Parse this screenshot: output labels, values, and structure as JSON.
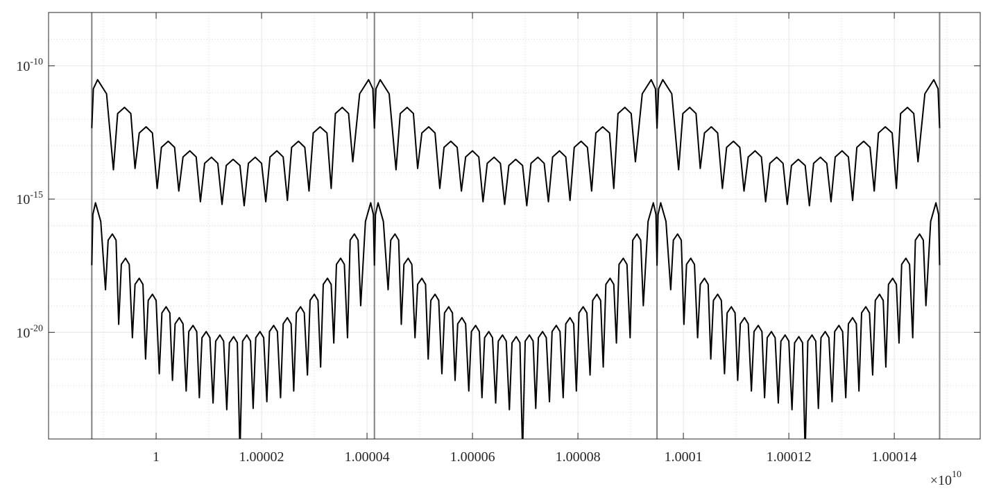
{
  "chart_data": {
    "type": "line",
    "yscale": "log",
    "grid": true,
    "minor_grid": true,
    "xlim": [
      0.9999796,
      1.0001563
    ],
    "ylim": [
      1e-24,
      1e-08
    ],
    "xticks": [
      1,
      1.00002,
      1.00004,
      1.00006,
      1.00008,
      1.0001,
      1.00012,
      1.00014
    ],
    "yticks": [
      {
        "value": 1e-10,
        "label": "10",
        "exponent": "-10"
      },
      {
        "value": 1e-15,
        "label": "10",
        "exponent": "-15"
      },
      {
        "value": 1e-20,
        "label": "10",
        "exponent": "-20"
      }
    ],
    "x_multiplier": "×10",
    "x_multiplier_exponent": "10",
    "vlines": {
      "color": "#808080",
      "x": [
        0.9999878,
        1.0000414,
        1.000095,
        1.0001486
      ]
    },
    "series": [
      {
        "color": "#000000",
        "x": [
          0.9999878,
          0.9999881,
          0.9999889,
          0.9999906,
          0.9999919,
          0.9999927,
          0.999994,
          0.9999952,
          0.999996,
          0.9999968,
          0.9999981,
          0.9999993,
          1.0000002,
          1.000001,
          1.0000023,
          1.0000035,
          1.0000043,
          1.0000051,
          1.0000064,
          1.0000076,
          1.0000084,
          1.0000092,
          1.0000105,
          1.0000117,
          1.0000125,
          1.0000133,
          1.0000146,
          1.0000159,
          1.0000167,
          1.0000175,
          1.0000188,
          1.00002,
          1.0000208,
          1.0000216,
          1.0000229,
          1.0000241,
          1.0000249,
          1.0000257,
          1.000027,
          1.0000282,
          1.000029,
          1.0000298,
          1.0000311,
          1.0000324,
          1.0000332,
          1.000034,
          1.0000353,
          1.0000365,
          1.0000373,
          1.0000386,
          1.0000403,
          1.0000411,
          1.0000414,
          1.0000417,
          1.0000425,
          1.0000442,
          1.0000455,
          1.0000463,
          1.0000476,
          1.0000488,
          1.0000496,
          1.0000504,
          1.0000517,
          1.0000529,
          1.0000538,
          1.0000546,
          1.0000559,
          1.0000571,
          1.0000579,
          1.0000587,
          1.00006,
          1.0000612,
          1.000062,
          1.0000628,
          1.0000641,
          1.0000653,
          1.0000661,
          1.0000669,
          1.0000682,
          1.0000695,
          1.0000703,
          1.0000711,
          1.0000724,
          1.0000736,
          1.0000744,
          1.0000752,
          1.0000765,
          1.0000777,
          1.0000785,
          1.0000793,
          1.0000806,
          1.0000818,
          1.0000826,
          1.0000834,
          1.0000847,
          1.000086,
          1.0000868,
          1.0000876,
          1.0000889,
          1.0000901,
          1.0000909,
          1.0000922,
          1.0000939,
          1.0000947,
          1.000095,
          1.0000953,
          1.0000961,
          1.0000978,
          1.0000991,
          1.0000999,
          1.0001012,
          1.0001024,
          1.0001032,
          1.000104,
          1.0001053,
          1.0001065,
          1.0001074,
          1.0001082,
          1.0001095,
          1.0001107,
          1.0001115,
          1.0001123,
          1.0001136,
          1.0001148,
          1.0001156,
          1.0001164,
          1.0001177,
          1.0001189,
          1.0001197,
          1.0001205,
          1.0001218,
          1.0001231,
          1.0001239,
          1.0001247,
          1.000126,
          1.0001272,
          1.000128,
          1.0001288,
          1.0001301,
          1.0001313,
          1.0001321,
          1.0001329,
          1.0001342,
          1.0001354,
          1.0001362,
          1.000137,
          1.0001383,
          1.0001396,
          1.0001404,
          1.0001412,
          1.0001425,
          1.0001437,
          1.0001445,
          1.0001458,
          1.0001475,
          1.0001483,
          1.0001486
        ],
        "values": [
          4.6e-13,
          1.38e-11,
          3e-11,
          8.9e-12,
          1.26e-14,
          1.62e-12,
          2.75e-12,
          1.62e-12,
          1.41e-14,
          3.02e-13,
          5.13e-13,
          3.02e-13,
          2.51e-15,
          8.7e-14,
          1.48e-13,
          8.7e-14,
          2e-15,
          3.8e-14,
          6.46e-14,
          3.8e-14,
          7.94e-16,
          2.19e-14,
          3.72e-14,
          2.19e-14,
          6.31e-16,
          1.82e-14,
          3.09e-14,
          1.82e-14,
          5.62e-16,
          2.19e-14,
          3.72e-14,
          2.19e-14,
          7.94e-16,
          3.8e-14,
          6.46e-14,
          3.8e-14,
          8.91e-16,
          8.7e-14,
          1.48e-13,
          8.7e-14,
          2e-15,
          3.02e-13,
          5.13e-13,
          3.02e-13,
          2.51e-15,
          1.62e-12,
          2.75e-12,
          1.62e-12,
          2.51e-14,
          8.9e-12,
          3e-11,
          1.38e-11,
          4.6e-13,
          1.38e-11,
          3e-11,
          8.9e-12,
          1.26e-14,
          1.62e-12,
          2.75e-12,
          1.62e-12,
          1.41e-14,
          3.02e-13,
          5.13e-13,
          3.02e-13,
          2.51e-15,
          8.7e-14,
          1.48e-13,
          8.7e-14,
          2e-15,
          3.8e-14,
          6.46e-14,
          3.8e-14,
          7.94e-16,
          2.19e-14,
          3.72e-14,
          2.19e-14,
          6.31e-16,
          1.82e-14,
          3.09e-14,
          1.82e-14,
          5.62e-16,
          2.19e-14,
          3.72e-14,
          2.19e-14,
          7.94e-16,
          3.8e-14,
          6.46e-14,
          3.8e-14,
          8.91e-16,
          8.7e-14,
          1.48e-13,
          8.7e-14,
          2e-15,
          3.02e-13,
          5.13e-13,
          3.02e-13,
          2.51e-15,
          1.62e-12,
          2.75e-12,
          1.62e-12,
          2.51e-14,
          8.9e-12,
          3e-11,
          1.38e-11,
          4.6e-13,
          1.38e-11,
          3e-11,
          8.9e-12,
          1.26e-14,
          1.62e-12,
          2.75e-12,
          1.62e-12,
          1.41e-14,
          3.02e-13,
          5.13e-13,
          3.02e-13,
          2.51e-15,
          8.7e-14,
          1.48e-13,
          8.7e-14,
          2e-15,
          3.8e-14,
          6.46e-14,
          3.8e-14,
          7.94e-16,
          2.19e-14,
          3.72e-14,
          2.19e-14,
          6.31e-16,
          1.82e-14,
          3.09e-14,
          1.82e-14,
          5.62e-16,
          2.19e-14,
          3.72e-14,
          2.19e-14,
          7.94e-16,
          3.8e-14,
          6.46e-14,
          3.8e-14,
          8.91e-16,
          8.7e-14,
          1.48e-13,
          8.7e-14,
          2e-15,
          3.02e-13,
          5.13e-13,
          3.02e-13,
          2.51e-15,
          1.62e-12,
          2.75e-12,
          1.62e-12,
          2.51e-14,
          8.9e-12,
          3e-11,
          1.38e-11,
          4.6e-13
        ]
      },
      {
        "color": "#000000",
        "x": [
          0.9999878,
          0.999988,
          0.9999885,
          0.9999895,
          0.9999904,
          0.9999909,
          0.9999917,
          0.9999924,
          0.9999929,
          0.9999934,
          0.9999942,
          0.9999949,
          0.9999955,
          0.999996,
          0.9999968,
          0.9999975,
          0.999998,
          0.9999985,
          0.9999993,
          1.0,
          1.0000006,
          1.0000011,
          1.0000019,
          1.0000026,
          1.0000031,
          1.0000036,
          1.0000044,
          1.0000051,
          1.0000057,
          1.0000062,
          1.000007,
          1.0000077,
          1.0000082,
          1.0000087,
          1.0000095,
          1.0000102,
          1.0000108,
          1.0000113,
          1.0000121,
          1.0000128,
          1.0000134,
          1.0000139,
          1.0000147,
          1.0000154,
          1.0000159,
          1.0000164,
          1.0000172,
          1.0000179,
          1.0000184,
          1.0000189,
          1.0000197,
          1.0000204,
          1.000021,
          1.0000215,
          1.0000223,
          1.000023,
          1.0000236,
          1.0000241,
          1.0000249,
          1.0000256,
          1.0000261,
          1.0000266,
          1.0000274,
          1.0000281,
          1.0000287,
          1.0000292,
          1.00003,
          1.0000307,
          1.0000312,
          1.0000317,
          1.0000325,
          1.0000332,
          1.0000337,
          1.0000342,
          1.000035,
          1.0000357,
          1.0000363,
          1.0000368,
          1.0000376,
          1.0000383,
          1.0000388,
          1.0000397,
          1.0000407,
          1.0000412,
          1.0000414,
          1.0000416,
          1.0000421,
          1.0000431,
          1.000044,
          1.0000445,
          1.0000453,
          1.000046,
          1.0000465,
          1.000047,
          1.0000478,
          1.0000485,
          1.0000491,
          1.0000496,
          1.0000504,
          1.0000511,
          1.0000516,
          1.0000521,
          1.0000529,
          1.0000536,
          1.0000542,
          1.0000547,
          1.0000555,
          1.0000562,
          1.0000567,
          1.0000572,
          1.000058,
          1.0000587,
          1.0000593,
          1.0000598,
          1.0000606,
          1.0000613,
          1.0000618,
          1.0000623,
          1.0000631,
          1.0000638,
          1.0000644,
          1.0000649,
          1.0000657,
          1.0000664,
          1.000067,
          1.0000675,
          1.0000683,
          1.000069,
          1.0000695,
          1.00007,
          1.0000708,
          1.0000715,
          1.000072,
          1.0000725,
          1.0000733,
          1.000074,
          1.0000746,
          1.0000751,
          1.0000759,
          1.0000766,
          1.0000772,
          1.0000777,
          1.0000785,
          1.0000792,
          1.0000797,
          1.0000802,
          1.000081,
          1.0000817,
          1.0000823,
          1.0000828,
          1.0000836,
          1.0000843,
          1.0000848,
          1.0000853,
          1.0000861,
          1.0000868,
          1.0000873,
          1.0000878,
          1.0000886,
          1.0000893,
          1.0000899,
          1.0000904,
          1.0000912,
          1.0000919,
          1.0000924,
          1.0000933,
          1.0000943,
          1.0000948,
          1.000095,
          1.0000952,
          1.0000957,
          1.0000967,
          1.0000976,
          1.0000981,
          1.0000989,
          1.0000996,
          1.0001001,
          1.0001006,
          1.0001014,
          1.0001021,
          1.0001027,
          1.0001032,
          1.000104,
          1.0001047,
          1.0001052,
          1.0001057,
          1.0001065,
          1.0001072,
          1.0001078,
          1.0001083,
          1.0001091,
          1.0001098,
          1.0001103,
          1.0001108,
          1.0001116,
          1.0001123,
          1.0001129,
          1.0001134,
          1.0001142,
          1.0001149,
          1.0001154,
          1.0001159,
          1.0001167,
          1.0001174,
          1.000118,
          1.0001185,
          1.0001193,
          1.00012,
          1.0001206,
          1.0001211,
          1.0001219,
          1.0001226,
          1.0001231,
          1.0001236,
          1.0001244,
          1.0001251,
          1.0001256,
          1.0001261,
          1.0001269,
          1.0001276,
          1.0001282,
          1.0001287,
          1.0001295,
          1.0001302,
          1.0001308,
          1.0001313,
          1.0001321,
          1.0001328,
          1.0001333,
          1.0001338,
          1.0001346,
          1.0001353,
          1.0001359,
          1.0001364,
          1.0001372,
          1.0001379,
          1.0001384,
          1.0001389,
          1.0001397,
          1.0001404,
          1.0001409,
          1.0001414,
          1.0001422,
          1.0001429,
          1.0001435,
          1.000144,
          1.0001448,
          1.0001455,
          1.000146,
          1.0001469,
          1.0001479,
          1.0001484,
          1.0001486
        ],
        "values": [
          3.31e-18,
          2.63e-16,
          7.24e-16,
          1.45e-16,
          3.98e-19,
          2.88e-17,
          4.9e-17,
          2.88e-17,
          2e-20,
          3.55e-18,
          6.03e-18,
          3.55e-18,
          6.31e-21,
          6.31e-19,
          1.07e-18,
          6.31e-19,
          1e-21,
          1.58e-19,
          2.69e-19,
          1.58e-19,
          2.82e-22,
          5.37e-20,
          9.12e-20,
          5.37e-20,
          1.58e-22,
          2.09e-20,
          3.55e-20,
          2.09e-20,
          6.31e-23,
          1.07e-20,
          1.82e-20,
          1.07e-20,
          3.55e-23,
          6.31e-21,
          1.07e-20,
          6.31e-21,
          2.24e-23,
          4.68e-21,
          7.94e-21,
          4.68e-21,
          1.26e-23,
          4.07e-21,
          6.92e-21,
          4.07e-21,
          3.16e-25,
          4.68e-21,
          7.94e-21,
          4.68e-21,
          1.41e-23,
          6.31e-21,
          1.07e-20,
          6.31e-21,
          2.51e-23,
          1.07e-20,
          1.82e-20,
          1.07e-20,
          3.55e-23,
          2.09e-20,
          3.55e-20,
          2.09e-20,
          6.31e-23,
          5.37e-20,
          9.12e-20,
          5.37e-20,
          2.51e-22,
          1.58e-19,
          2.69e-19,
          1.58e-19,
          5.01e-22,
          6.31e-19,
          1.07e-18,
          6.31e-19,
          3.98e-21,
          3.55e-18,
          6.03e-18,
          3.55e-18,
          6.31e-21,
          2.88e-17,
          4.9e-17,
          2.88e-17,
          1e-19,
          1.45e-16,
          7.24e-16,
          2.63e-16,
          3.31e-18,
          2.63e-16,
          7.24e-16,
          1.45e-16,
          3.98e-19,
          2.88e-17,
          4.9e-17,
          2.88e-17,
          2e-20,
          3.55e-18,
          6.03e-18,
          3.55e-18,
          6.31e-21,
          6.31e-19,
          1.07e-18,
          6.31e-19,
          1e-21,
          1.58e-19,
          2.69e-19,
          1.58e-19,
          2.82e-22,
          5.37e-20,
          9.12e-20,
          5.37e-20,
          1.58e-22,
          2.09e-20,
          3.55e-20,
          2.09e-20,
          6.31e-23,
          1.07e-20,
          1.82e-20,
          1.07e-20,
          3.55e-23,
          6.31e-21,
          1.07e-20,
          6.31e-21,
          2.24e-23,
          4.68e-21,
          7.94e-21,
          4.68e-21,
          1.26e-23,
          4.07e-21,
          6.92e-21,
          4.07e-21,
          3.16e-25,
          4.68e-21,
          7.94e-21,
          4.68e-21,
          1.41e-23,
          6.31e-21,
          1.07e-20,
          6.31e-21,
          2.51e-23,
          1.07e-20,
          1.82e-20,
          1.07e-20,
          3.55e-23,
          2.09e-20,
          3.55e-20,
          2.09e-20,
          6.31e-23,
          5.37e-20,
          9.12e-20,
          5.37e-20,
          2.51e-22,
          1.58e-19,
          2.69e-19,
          1.58e-19,
          5.01e-22,
          6.31e-19,
          1.07e-18,
          6.31e-19,
          3.98e-21,
          3.55e-18,
          6.03e-18,
          3.55e-18,
          6.31e-21,
          2.88e-17,
          4.9e-17,
          2.88e-17,
          1e-19,
          1.45e-16,
          7.24e-16,
          2.63e-16,
          3.31e-18,
          2.63e-16,
          7.24e-16,
          1.45e-16,
          3.98e-19,
          2.88e-17,
          4.9e-17,
          2.88e-17,
          2e-20,
          3.55e-18,
          6.03e-18,
          3.55e-18,
          6.31e-21,
          6.31e-19,
          1.07e-18,
          6.31e-19,
          1e-21,
          1.58e-19,
          2.69e-19,
          1.58e-19,
          2.82e-22,
          5.37e-20,
          9.12e-20,
          5.37e-20,
          1.58e-22,
          2.09e-20,
          3.55e-20,
          2.09e-20,
          6.31e-23,
          1.07e-20,
          1.82e-20,
          1.07e-20,
          3.55e-23,
          6.31e-21,
          1.07e-20,
          6.31e-21,
          2.24e-23,
          4.68e-21,
          7.94e-21,
          4.68e-21,
          1.26e-23,
          4.07e-21,
          6.92e-21,
          4.07e-21,
          3.16e-25,
          4.68e-21,
          7.94e-21,
          4.68e-21,
          1.41e-23,
          6.31e-21,
          1.07e-20,
          6.31e-21,
          2.51e-23,
          1.07e-20,
          1.82e-20,
          1.07e-20,
          3.55e-23,
          2.09e-20,
          3.55e-20,
          2.09e-20,
          6.31e-23,
          5.37e-20,
          9.12e-20,
          5.37e-20,
          2.51e-22,
          1.58e-19,
          2.69e-19,
          1.58e-19,
          5.01e-22,
          6.31e-19,
          1.07e-18,
          6.31e-19,
          3.98e-21,
          3.55e-18,
          6.03e-18,
          3.55e-18,
          6.31e-21,
          2.88e-17,
          4.9e-17,
          2.88e-17,
          1e-19,
          1.45e-16,
          7.24e-16,
          2.63e-16,
          3.31e-18
        ]
      }
    ]
  }
}
